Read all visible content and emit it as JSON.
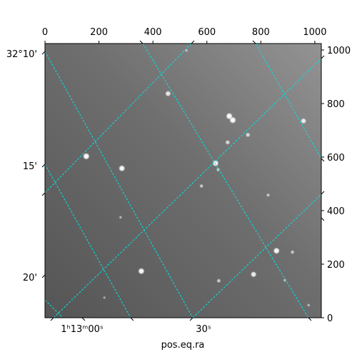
{
  "chart_data": {
    "type": "image",
    "colormap": "gray",
    "xlabel": "pos.eq.ra",
    "pixel_x_ticks": [
      "0",
      "200",
      "400",
      "600",
      "800",
      "1000"
    ],
    "pixel_y_ticks": [
      "0",
      "200",
      "400",
      "600",
      "800",
      "1000"
    ],
    "pixel_xlim": [
      0,
      1024
    ],
    "pixel_ylim": [
      0,
      1024
    ],
    "ra_ticks": [
      "1ʰ13ᵐ00ˢ",
      "30ˢ"
    ],
    "dec_ticks": [
      "32°10'",
      "15'",
      "20'"
    ],
    "grid": true,
    "grid_color": "#00e5e5",
    "sources": [
      {
        "x": 153,
        "y": 603,
        "brightness": 1.0
      },
      {
        "x": 285,
        "y": 558,
        "brightness": 0.95
      },
      {
        "x": 456,
        "y": 837,
        "brightness": 0.8
      },
      {
        "x": 683,
        "y": 753,
        "brightness": 1.0
      },
      {
        "x": 696,
        "y": 738,
        "brightness": 1.0
      },
      {
        "x": 632,
        "y": 577,
        "brightness": 0.95
      },
      {
        "x": 677,
        "y": 655,
        "brightness": 0.6
      },
      {
        "x": 752,
        "y": 683,
        "brightness": 0.6
      },
      {
        "x": 958,
        "y": 735,
        "brightness": 0.8
      },
      {
        "x": 580,
        "y": 492,
        "brightness": 0.45
      },
      {
        "x": 642,
        "y": 553,
        "brightness": 0.45
      },
      {
        "x": 827,
        "y": 458,
        "brightness": 0.4
      },
      {
        "x": 858,
        "y": 250,
        "brightness": 0.95
      },
      {
        "x": 917,
        "y": 245,
        "brightness": 0.45
      },
      {
        "x": 773,
        "y": 162,
        "brightness": 0.85
      },
      {
        "x": 357,
        "y": 174,
        "brightness": 0.95
      },
      {
        "x": 644,
        "y": 138,
        "brightness": 0.5
      },
      {
        "x": 889,
        "y": 140,
        "brightness": 0.35
      },
      {
        "x": 977,
        "y": 47,
        "brightness": 0.3
      },
      {
        "x": 280,
        "y": 375,
        "brightness": 0.3
      },
      {
        "x": 524,
        "y": 998,
        "brightness": 0.3
      },
      {
        "x": 220,
        "y": 75,
        "brightness": 0.25
      }
    ]
  }
}
